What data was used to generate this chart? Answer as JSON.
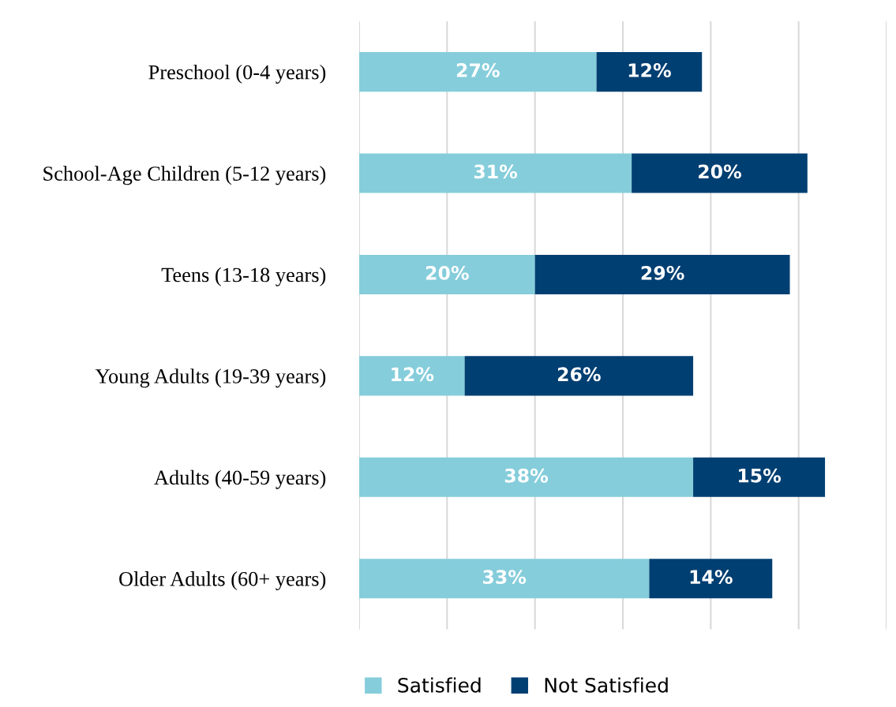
{
  "chart_data": {
    "type": "bar",
    "orientation": "horizontal",
    "stacked": true,
    "categories": [
      "Preschool (0-4 years)",
      "School-Age Children (5-12 years)",
      "Teens (13-18 years)",
      "Young Adults (19-39 years)",
      "Adults (40-59 years)",
      "Older Adults (60+ years)"
    ],
    "series": [
      {
        "name": "Satisfied",
        "color": "#85cddb",
        "values": [
          27,
          31,
          20,
          12,
          38,
          33
        ],
        "value_labels": [
          "27%",
          "31%",
          "20%",
          "12%",
          "38%",
          "33%"
        ]
      },
      {
        "name": "Not Satisfied",
        "color": "#003f72",
        "values": [
          12,
          20,
          29,
          26,
          15,
          14
        ],
        "value_labels": [
          "12%",
          "20%",
          "29%",
          "26%",
          "15%",
          "14%"
        ]
      }
    ],
    "xlim": [
      0,
      60
    ],
    "xticks": [
      {
        "value": 0,
        "label": null
      },
      {
        "value": 10,
        "label": null
      },
      {
        "value": 20,
        "label": null
      },
      {
        "value": 30,
        "label": null
      },
      {
        "value": 40,
        "label": null
      },
      {
        "value": 50,
        "label": null
      },
      {
        "value": 60,
        "label": null
      }
    ],
    "tick_labels": "y",
    "grid": "x",
    "legend": "bottom"
  }
}
